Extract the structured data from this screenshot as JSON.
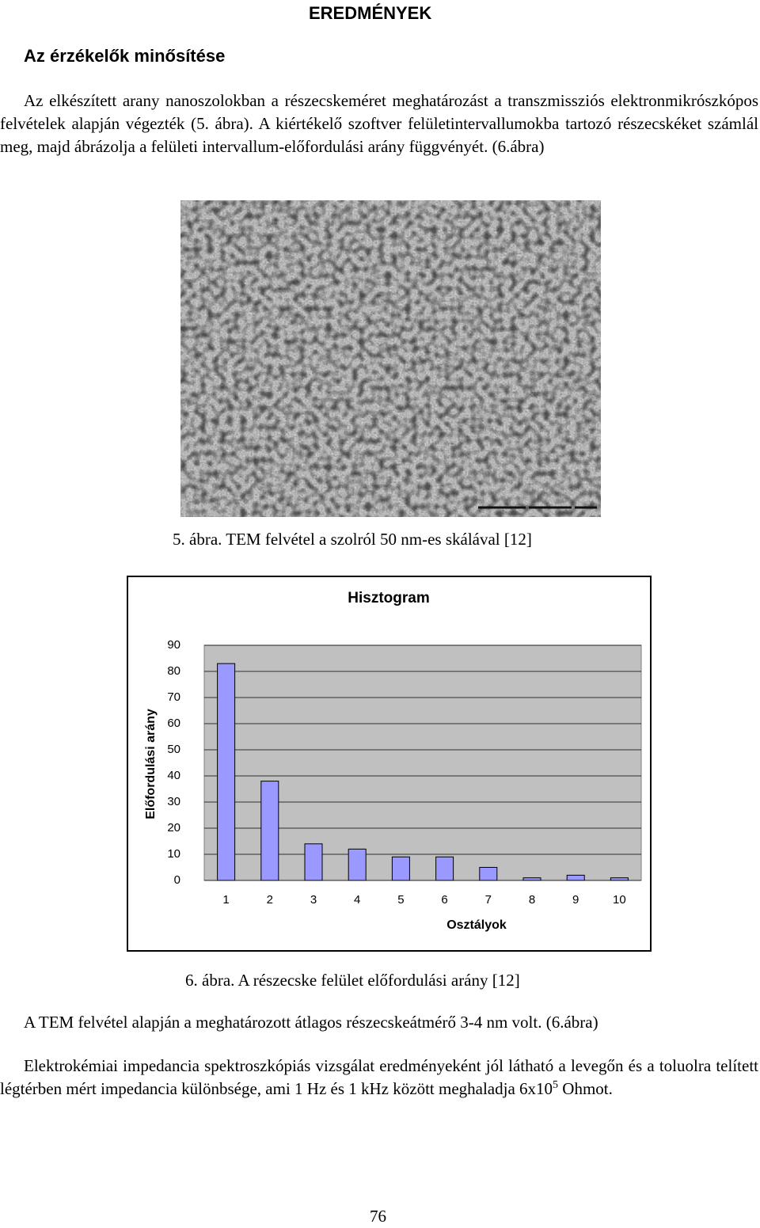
{
  "header": {
    "title": "EREDMÉNYEK"
  },
  "section": {
    "title": "Az érzékelők minősítése"
  },
  "paragraphs": [
    "Az elkészített arany nanoszolokban a részecskeméret meghatározást a transzmissziós elektronmikrószkópos felvételek alapján végezték (5. ábra). A kiértékelő szoftver felületintervallumokba tartozó részecskéket számlál meg, majd ábrázolja a felületi intervallum-előfordulási arány függvényét. (6.ábra)",
    "A TEM felvétel alapján a meghatározott átlagos részecskeátmérő 3-4 nm volt. (6.ábra)"
  ],
  "last_paragraph": {
    "before": "Elektrokémiai impedancia spektroszkópiás vizsgálat eredményeként jól látható a levegőn és a toluolra telített légtérben mért impedancia különbsége, ami 1 Hz és 1 kHz között meghaladja 6x10",
    "sup": "5",
    "after": " Ohmot."
  },
  "figure5": {
    "caption": "5.  ábra. TEM felvétel a szolról 50 nm-es skálával [12]"
  },
  "figure6": {
    "caption": "6.  ábra. A részecske felület előfordulási arány [12]"
  },
  "chart_data": {
    "type": "bar",
    "title": "Hisztogram",
    "x_label": "Osztályok",
    "y_label": "Előfordulási arány",
    "categories": [
      "1",
      "2",
      "3",
      "4",
      "5",
      "6",
      "7",
      "8",
      "9",
      "10"
    ],
    "values": [
      83,
      38,
      14,
      12,
      9,
      9,
      5,
      1,
      2,
      1
    ],
    "color": "#9999ff",
    "ylim": [
      0,
      90
    ],
    "yticks": [
      0,
      10,
      20,
      30,
      40,
      50,
      60,
      70,
      80,
      90
    ],
    "grid": true
  },
  "page_number": "76"
}
